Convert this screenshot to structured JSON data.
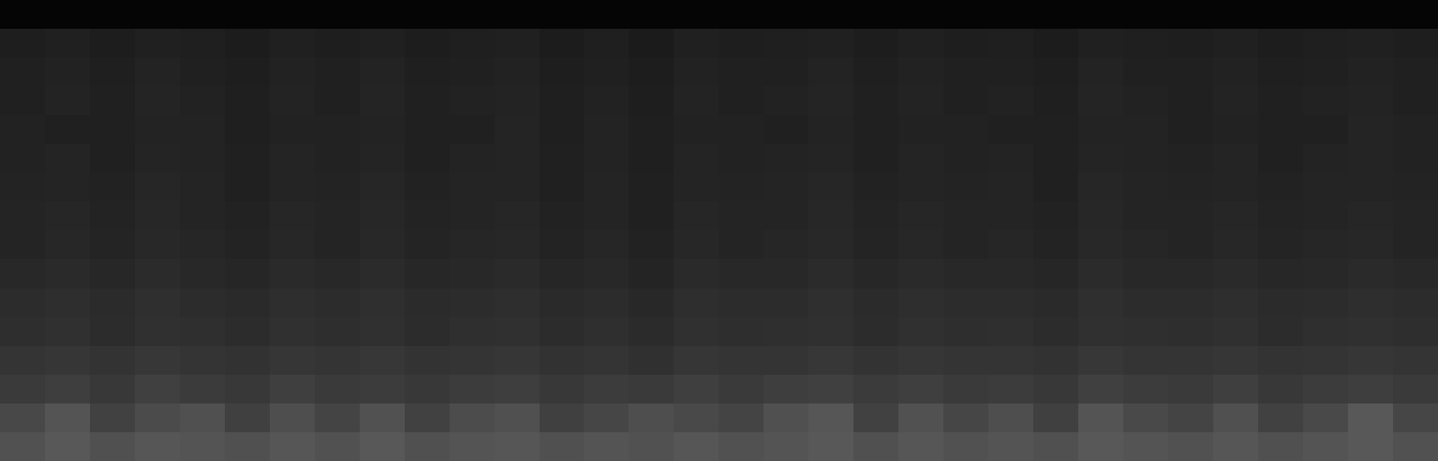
{
  "chart_data": {
    "type": "heatmap",
    "tick_labels": false,
    "color_range": [
      0,
      255
    ],
    "cells": [
      [
        5,
        5,
        5,
        5,
        5,
        5,
        5,
        5,
        5,
        5,
        5,
        5,
        5,
        5,
        5,
        5,
        5,
        5,
        5,
        5,
        5,
        5,
        5,
        5,
        5,
        5,
        5,
        5,
        5,
        5,
        5,
        5
      ],
      [
        30,
        32,
        29,
        33,
        31,
        28,
        32,
        30,
        33,
        29,
        31,
        32,
        28,
        31,
        27,
        32,
        30,
        31,
        33,
        29,
        32,
        30,
        31,
        28,
        33,
        31,
        30,
        32,
        29,
        31,
        32,
        30
      ],
      [
        32,
        34,
        31,
        35,
        33,
        30,
        34,
        32,
        35,
        31,
        33,
        34,
        30,
        33,
        29,
        34,
        32,
        33,
        35,
        31,
        34,
        32,
        33,
        30,
        35,
        33,
        32,
        34,
        31,
        33,
        34,
        32
      ],
      [
        33,
        35,
        32,
        36,
        34,
        31,
        35,
        33,
        36,
        32,
        34,
        35,
        31,
        34,
        30,
        35,
        33,
        34,
        36,
        32,
        35,
        33,
        34,
        31,
        36,
        34,
        33,
        35,
        32,
        34,
        35,
        33
      ],
      [
        34,
        33,
        32,
        35,
        35,
        31,
        34,
        34,
        35,
        33,
        33,
        36,
        31,
        35,
        31,
        34,
        34,
        33,
        35,
        33,
        34,
        34,
        33,
        32,
        35,
        35,
        33,
        34,
        33,
        33,
        36,
        34
      ],
      [
        34,
        36,
        33,
        37,
        35,
        32,
        36,
        34,
        37,
        33,
        35,
        36,
        32,
        35,
        31,
        36,
        34,
        35,
        37,
        33,
        36,
        34,
        35,
        32,
        37,
        35,
        34,
        36,
        33,
        35,
        36,
        34
      ],
      [
        35,
        37,
        34,
        38,
        36,
        33,
        37,
        35,
        38,
        34,
        36,
        37,
        33,
        36,
        32,
        37,
        35,
        36,
        38,
        34,
        37,
        35,
        36,
        33,
        38,
        36,
        35,
        37,
        34,
        36,
        37,
        35
      ],
      [
        36,
        38,
        35,
        39,
        37,
        34,
        38,
        36,
        39,
        35,
        37,
        38,
        34,
        37,
        33,
        38,
        36,
        37,
        39,
        35,
        38,
        36,
        37,
        34,
        39,
        37,
        36,
        38,
        35,
        37,
        38,
        36
      ],
      [
        37,
        39,
        36,
        40,
        38,
        35,
        39,
        37,
        40,
        36,
        38,
        39,
        35,
        38,
        34,
        39,
        37,
        38,
        40,
        36,
        39,
        37,
        38,
        35,
        40,
        38,
        37,
        39,
        36,
        38,
        39,
        37
      ],
      [
        40,
        42,
        39,
        43,
        41,
        38,
        42,
        40,
        43,
        39,
        41,
        42,
        38,
        41,
        37,
        42,
        40,
        41,
        43,
        39,
        42,
        40,
        41,
        38,
        43,
        41,
        40,
        42,
        39,
        41,
        42,
        40
      ],
      [
        44,
        46,
        43,
        47,
        45,
        42,
        46,
        44,
        47,
        43,
        45,
        46,
        42,
        45,
        41,
        46,
        44,
        45,
        47,
        43,
        46,
        44,
        45,
        42,
        47,
        45,
        44,
        46,
        43,
        45,
        46,
        44
      ],
      [
        46,
        48,
        45,
        49,
        47,
        44,
        48,
        46,
        49,
        45,
        47,
        48,
        44,
        47,
        43,
        48,
        46,
        47,
        49,
        45,
        48,
        46,
        47,
        44,
        49,
        47,
        46,
        48,
        45,
        47,
        48,
        46
      ],
      [
        52,
        54,
        51,
        55,
        53,
        50,
        54,
        52,
        55,
        51,
        53,
        54,
        50,
        53,
        49,
        54,
        52,
        53,
        55,
        51,
        54,
        52,
        53,
        50,
        55,
        53,
        52,
        54,
        51,
        53,
        54,
        52
      ],
      [
        58,
        62,
        57,
        64,
        59,
        56,
        63,
        58,
        61,
        57,
        60,
        62,
        56,
        60,
        58,
        63,
        58,
        62,
        64,
        59,
        63,
        58,
        61,
        56,
        64,
        60,
        58,
        63,
        57,
        60,
        62,
        58
      ],
      [
        72,
        84,
        66,
        75,
        80,
        64,
        78,
        68,
        82,
        65,
        76,
        80,
        64,
        70,
        78,
        74,
        68,
        80,
        86,
        66,
        82,
        70,
        78,
        64,
        84,
        74,
        68,
        80,
        66,
        74,
        88,
        70
      ],
      [
        82,
        88,
        80,
        86,
        84,
        80,
        86,
        82,
        88,
        80,
        84,
        86,
        80,
        84,
        82,
        86,
        82,
        84,
        88,
        80,
        86,
        82,
        84,
        80,
        88,
        84,
        82,
        86,
        80,
        84,
        88,
        82
      ]
    ]
  }
}
